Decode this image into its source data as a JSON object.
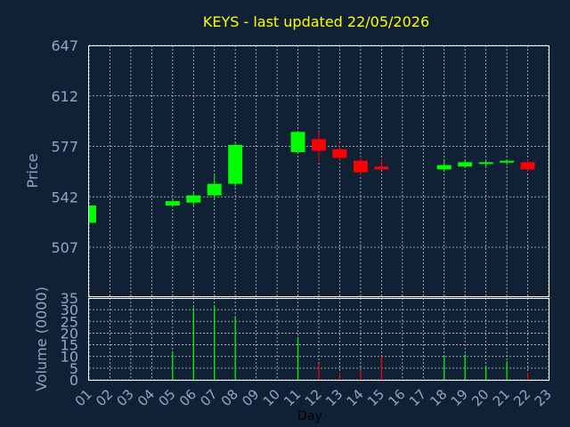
{
  "chart_data": [
    {
      "type": "candlestick",
      "title": "KEYS - last updated 22/05/2026",
      "ylabel": "Price",
      "ylim": [
        507,
        647
      ],
      "yticks": [
        507,
        542,
        577,
        612,
        647
      ],
      "grid": true,
      "colors": {
        "up": "#00ff00",
        "down": "#ff0000"
      },
      "x": [
        "01",
        "02",
        "03",
        "04",
        "05",
        "06",
        "07",
        "08",
        "09",
        "10",
        "11",
        "12",
        "13",
        "14",
        "15",
        "16",
        "17",
        "18",
        "19",
        "20",
        "21",
        "22",
        "23"
      ],
      "candles": [
        {
          "x": "01",
          "open": 524,
          "high": 536,
          "low": 524,
          "close": 536
        },
        {
          "x": "05",
          "open": 536,
          "high": 541,
          "low": 535,
          "close": 539
        },
        {
          "x": "06",
          "open": 538,
          "high": 545,
          "low": 536,
          "close": 543
        },
        {
          "x": "07",
          "open": 543,
          "high": 558,
          "low": 541,
          "close": 551
        },
        {
          "x": "08",
          "open": 551,
          "high": 579,
          "low": 549,
          "close": 578
        },
        {
          "x": "11",
          "open": 573,
          "high": 587,
          "low": 572,
          "close": 587
        },
        {
          "x": "12",
          "open": 582,
          "high": 587,
          "low": 566,
          "close": 574
        },
        {
          "x": "13",
          "open": 575,
          "high": 578,
          "low": 567,
          "close": 569
        },
        {
          "x": "14",
          "open": 567,
          "high": 570,
          "low": 557,
          "close": 559
        },
        {
          "x": "15",
          "open": 563,
          "high": 568,
          "low": 561,
          "close": 561
        },
        {
          "x": "18",
          "open": 561,
          "high": 568,
          "low": 560,
          "close": 564
        },
        {
          "x": "19",
          "open": 563,
          "high": 567,
          "low": 562,
          "close": 566
        },
        {
          "x": "20",
          "open": 565,
          "high": 567,
          "low": 563,
          "close": 566
        },
        {
          "x": "21",
          "open": 566,
          "high": 568,
          "low": 564,
          "close": 567
        },
        {
          "x": "22",
          "open": 566,
          "high": 568,
          "low": 559,
          "close": 561
        }
      ]
    },
    {
      "type": "bar",
      "xlabel": "Day",
      "ylabel": "Volume (0000)",
      "ylim": [
        0,
        35
      ],
      "yticks": [
        0,
        5,
        10,
        15,
        20,
        25,
        30,
        35
      ],
      "grid": true,
      "volumes": [
        {
          "x": "05",
          "value": 12,
          "dir": "up"
        },
        {
          "x": "06",
          "value": 31,
          "dir": "up"
        },
        {
          "x": "07",
          "value": 32,
          "dir": "up"
        },
        {
          "x": "08",
          "value": 27,
          "dir": "up"
        },
        {
          "x": "11",
          "value": 18,
          "dir": "up"
        },
        {
          "x": "12",
          "value": 7,
          "dir": "down"
        },
        {
          "x": "13",
          "value": 3,
          "dir": "down"
        },
        {
          "x": "14",
          "value": 4,
          "dir": "down"
        },
        {
          "x": "15",
          "value": 10,
          "dir": "down"
        },
        {
          "x": "18",
          "value": 10,
          "dir": "up"
        },
        {
          "x": "19",
          "value": 11,
          "dir": "up"
        },
        {
          "x": "20",
          "value": 6,
          "dir": "up"
        },
        {
          "x": "21",
          "value": 8,
          "dir": "up"
        },
        {
          "x": "22",
          "value": 3,
          "dir": "down"
        }
      ]
    }
  ]
}
